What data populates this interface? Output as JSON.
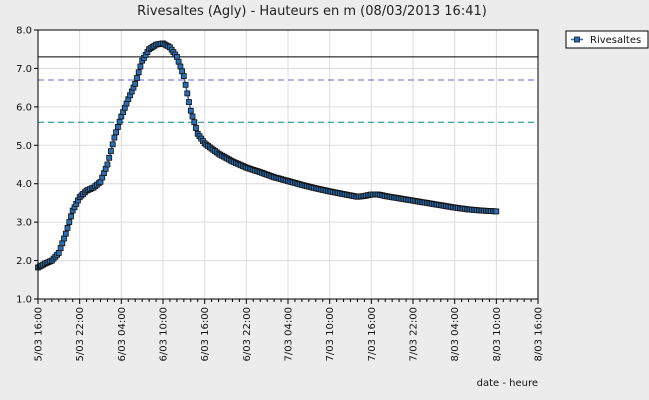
{
  "chart_data": {
    "type": "line",
    "title": "Rivesaltes (Agly) - Hauteurs en m (08/03/2013 16:41)",
    "xlabel": "date - heure",
    "ylabel": "",
    "ylim": [
      1.0,
      8.0
    ],
    "yticks": [
      "1.0",
      "2.0",
      "3.0",
      "4.0",
      "5.0",
      "6.0",
      "7.0",
      "8.0"
    ],
    "xlim_hours": [
      0,
      72
    ],
    "xticks": [
      "5/03 16:00",
      "5/03 22:00",
      "6/03 04:00",
      "6/03 10:00",
      "6/03 16:00",
      "6/03 22:00",
      "7/03 04:00",
      "7/03 10:00",
      "7/03 16:00",
      "7/03 22:00",
      "8/03 04:00",
      "8/03 10:00",
      "8/03 16:00"
    ],
    "grid": true,
    "legend_position": "top-right",
    "reference_lines": [
      {
        "value": 7.3,
        "color": "#000000",
        "style": "solid"
      },
      {
        "value": 6.7,
        "color": "#6666cc",
        "style": "dashed"
      },
      {
        "value": 5.6,
        "color": "#008888",
        "style": "dashed"
      }
    ],
    "series": [
      {
        "name": "Rivesaltes",
        "color": "#2a6fb5",
        "marker": "square",
        "points": [
          [
            0,
            1.82
          ],
          [
            1,
            1.92
          ],
          [
            2,
            2.0
          ],
          [
            3,
            2.2
          ],
          [
            4,
            2.7
          ],
          [
            5,
            3.3
          ],
          [
            6,
            3.65
          ],
          [
            7,
            3.82
          ],
          [
            8,
            3.9
          ],
          [
            9,
            4.05
          ],
          [
            10,
            4.5
          ],
          [
            11,
            5.2
          ],
          [
            12,
            5.75
          ],
          [
            13,
            6.2
          ],
          [
            14,
            6.6
          ],
          [
            15,
            7.2
          ],
          [
            16,
            7.5
          ],
          [
            17,
            7.62
          ],
          [
            18,
            7.65
          ],
          [
            19,
            7.55
          ],
          [
            20,
            7.3
          ],
          [
            21,
            6.8
          ],
          [
            22,
            5.9
          ],
          [
            23,
            5.3
          ],
          [
            24,
            5.05
          ],
          [
            26,
            4.78
          ],
          [
            28,
            4.58
          ],
          [
            30,
            4.42
          ],
          [
            32,
            4.3
          ],
          [
            34,
            4.17
          ],
          [
            36,
            4.07
          ],
          [
            38,
            3.97
          ],
          [
            40,
            3.88
          ],
          [
            42,
            3.8
          ],
          [
            44,
            3.73
          ],
          [
            46,
            3.66
          ],
          [
            47,
            3.68
          ],
          [
            48,
            3.72
          ],
          [
            49,
            3.72
          ],
          [
            50,
            3.68
          ],
          [
            52,
            3.62
          ],
          [
            54,
            3.56
          ],
          [
            56,
            3.5
          ],
          [
            58,
            3.44
          ],
          [
            60,
            3.38
          ],
          [
            62,
            3.33
          ],
          [
            64,
            3.3
          ],
          [
            66,
            3.28
          ]
        ]
      }
    ]
  }
}
